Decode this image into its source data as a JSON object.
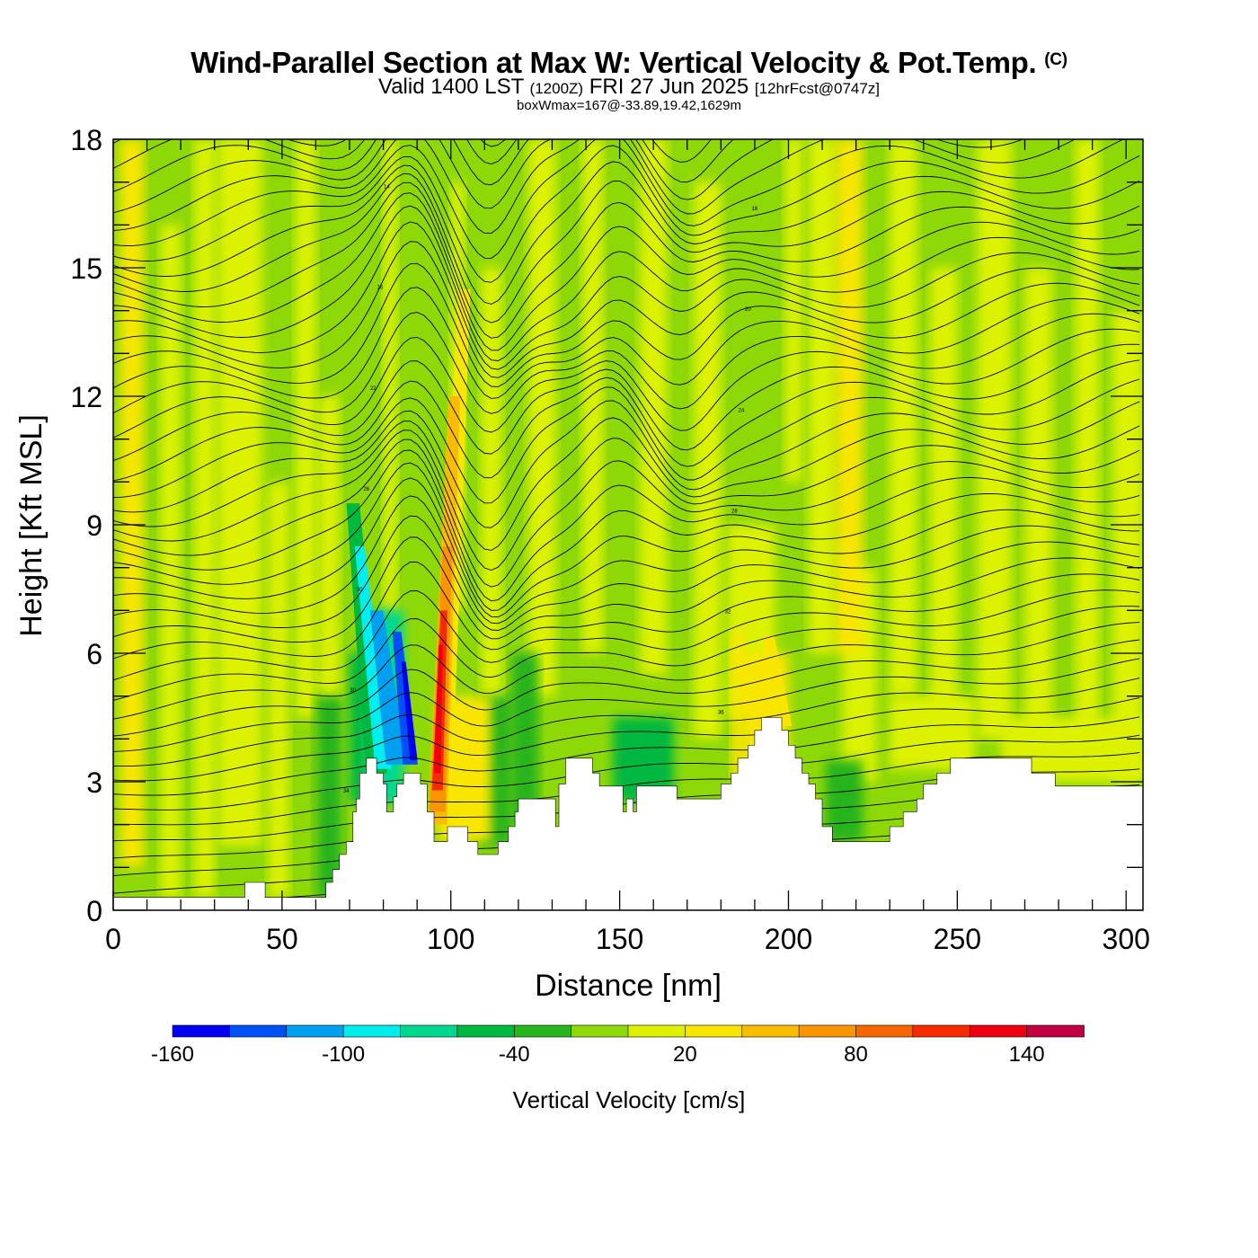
{
  "header": {
    "title": "Wind-Parallel Section at Max W: Vertical Velocity & Pot.Temp.",
    "copyright": "(C)",
    "valid_prefix": "Valid 1400 LST",
    "valid_zulu": "(1200Z)",
    "valid_date": "FRI 27 Jun 2025",
    "forecast": "[12hrFcst@0747z]",
    "box_wmax": "boxWmax=167@-33.89,19.42,1629m"
  },
  "chart_data": {
    "type": "heatmap",
    "xlabel": "Distance [nm]",
    "ylabel": "Height [Kft MSL]",
    "xlim": [
      0,
      305
    ],
    "ylim": [
      0,
      18
    ],
    "x_ticks": [
      "0",
      "50",
      "100",
      "150",
      "200",
      "250",
      "300"
    ],
    "x_tick_values": [
      0,
      50,
      100,
      150,
      200,
      250,
      300
    ],
    "y_ticks": [
      "0",
      "3",
      "6",
      "9",
      "12",
      "15",
      "18"
    ],
    "y_tick_values": [
      0,
      3,
      6,
      9,
      12,
      15,
      18
    ],
    "background_color": "#8fd808",
    "terrain": [
      [
        0,
        0.3
      ],
      [
        39,
        0.3
      ],
      [
        39,
        0.65
      ],
      [
        45,
        0.65
      ],
      [
        45,
        0.3
      ],
      [
        63,
        0.3
      ],
      [
        63,
        0.65
      ],
      [
        65,
        0.65
      ],
      [
        65,
        0.95
      ],
      [
        67,
        0.95
      ],
      [
        67,
        1.3
      ],
      [
        69,
        1.3
      ],
      [
        69,
        1.6
      ],
      [
        71,
        1.6
      ],
      [
        71,
        2.3
      ],
      [
        72,
        2.3
      ],
      [
        72,
        2.6
      ],
      [
        73,
        2.6
      ],
      [
        73,
        3.2
      ],
      [
        75,
        3.2
      ],
      [
        75,
        3.55
      ],
      [
        78,
        3.55
      ],
      [
        78,
        3.2
      ],
      [
        80,
        3.2
      ],
      [
        80,
        2.95
      ],
      [
        81,
        2.95
      ],
      [
        81,
        2.3
      ],
      [
        83,
        2.3
      ],
      [
        83,
        2.65
      ],
      [
        84,
        2.65
      ],
      [
        84,
        2.95
      ],
      [
        86,
        2.95
      ],
      [
        86,
        3.2
      ],
      [
        91,
        3.2
      ],
      [
        91,
        2.95
      ],
      [
        93,
        2.95
      ],
      [
        93,
        2.3
      ],
      [
        95,
        2.3
      ],
      [
        95,
        1.6
      ],
      [
        99,
        1.6
      ],
      [
        99,
        1.95
      ],
      [
        105,
        1.95
      ],
      [
        105,
        1.6
      ],
      [
        108,
        1.6
      ],
      [
        108,
        1.3
      ],
      [
        114,
        1.3
      ],
      [
        114,
        1.6
      ],
      [
        117,
        1.6
      ],
      [
        117,
        1.95
      ],
      [
        119,
        1.95
      ],
      [
        119,
        2.3
      ],
      [
        120,
        2.3
      ],
      [
        120,
        2.6
      ],
      [
        131,
        2.6
      ],
      [
        131,
        1.95
      ],
      [
        132,
        1.95
      ],
      [
        132,
        2.95
      ],
      [
        134,
        2.95
      ],
      [
        134,
        3.55
      ],
      [
        142,
        3.55
      ],
      [
        142,
        3.2
      ],
      [
        144,
        3.2
      ],
      [
        144,
        2.9
      ],
      [
        151,
        2.9
      ],
      [
        151,
        2.3
      ],
      [
        152,
        2.3
      ],
      [
        152,
        2.6
      ],
      [
        154,
        2.6
      ],
      [
        154,
        2.3
      ],
      [
        155,
        2.3
      ],
      [
        155,
        2.9
      ],
      [
        167,
        2.9
      ],
      [
        167,
        2.6
      ],
      [
        180,
        2.6
      ],
      [
        180,
        2.95
      ],
      [
        183,
        2.95
      ],
      [
        183,
        3.2
      ],
      [
        185,
        3.2
      ],
      [
        185,
        3.55
      ],
      [
        188,
        3.55
      ],
      [
        188,
        3.85
      ],
      [
        190,
        3.85
      ],
      [
        190,
        4.2
      ],
      [
        192,
        4.2
      ],
      [
        192,
        4.5
      ],
      [
        198,
        4.5
      ],
      [
        198,
        4.2
      ],
      [
        200,
        4.2
      ],
      [
        200,
        3.85
      ],
      [
        202,
        3.85
      ],
      [
        202,
        3.55
      ],
      [
        204,
        3.55
      ],
      [
        204,
        3.2
      ],
      [
        206,
        3.2
      ],
      [
        206,
        2.95
      ],
      [
        208,
        2.95
      ],
      [
        208,
        2.6
      ],
      [
        210,
        2.6
      ],
      [
        210,
        1.95
      ],
      [
        213,
        1.95
      ],
      [
        213,
        1.6
      ],
      [
        230,
        1.6
      ],
      [
        230,
        1.95
      ],
      [
        234,
        1.95
      ],
      [
        234,
        2.3
      ],
      [
        238,
        2.3
      ],
      [
        238,
        2.6
      ],
      [
        240,
        2.6
      ],
      [
        240,
        2.95
      ],
      [
        244,
        2.95
      ],
      [
        244,
        3.2
      ],
      [
        248,
        3.2
      ],
      [
        248,
        3.55
      ],
      [
        272,
        3.55
      ],
      [
        272,
        3.2
      ],
      [
        279,
        3.2
      ],
      [
        279,
        2.9
      ],
      [
        305,
        2.9
      ]
    ],
    "colorbar": {
      "title": "Vertical Velocity [cm/s]",
      "tick_labels": [
        "-160",
        "-100",
        "-40",
        "20",
        "80",
        "140"
      ],
      "tick_values": [
        -160,
        -100,
        -40,
        20,
        80,
        140
      ],
      "bins": [
        -160,
        -140,
        -120,
        -100,
        -80,
        -60,
        -40,
        -20,
        0,
        20,
        40,
        60,
        80,
        100,
        120,
        140,
        160
      ],
      "colors": [
        "#0000f0",
        "#0050f5",
        "#00a0f0",
        "#00eeee",
        "#00d890",
        "#00b840",
        "#28b41c",
        "#8fd808",
        "#ddf201",
        "#f8e600",
        "#fabc00",
        "#f99500",
        "#f56600",
        "#f42c00",
        "#ee0010",
        "#c00040"
      ]
    },
    "features": [
      {
        "name": "downdraft",
        "w_min": -155,
        "x": 89,
        "height": 4.8
      },
      {
        "name": "updraft",
        "w_max": 135,
        "x": 96,
        "height": 5.3
      }
    ],
    "theta_contour_labels": [
      "30",
      "30",
      "34",
      "36",
      "30",
      "32",
      "30",
      "28",
      "26",
      "24",
      "22",
      "20",
      "16",
      "16",
      "14",
      "34",
      "36",
      "32",
      "30",
      "28",
      "26",
      "24",
      "22",
      "20",
      "18",
      "16",
      "36",
      "34",
      "32",
      "30",
      "28",
      "26",
      "24",
      "22",
      "20",
      "18",
      "16",
      "34",
      "36",
      "32",
      "30",
      "28",
      "26",
      "24",
      "22",
      "20",
      "18",
      "16"
    ]
  }
}
